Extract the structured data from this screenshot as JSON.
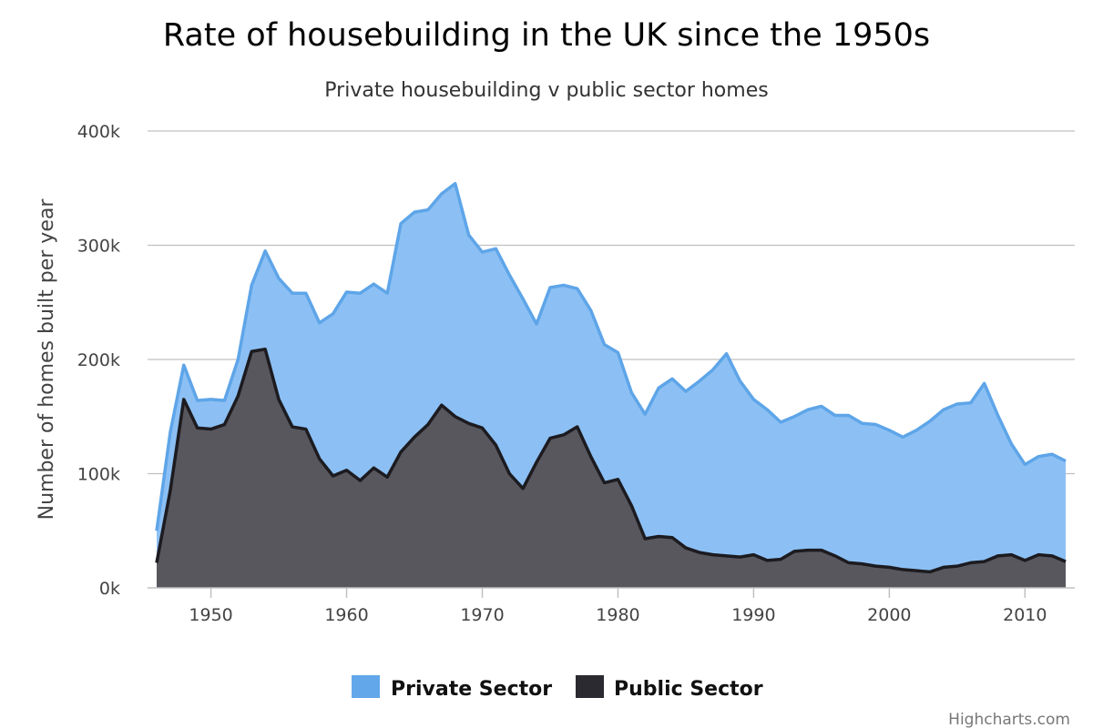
{
  "chart_data": {
    "type": "area",
    "title": "Rate of housebuilding in the UK since the 1950s",
    "subtitle": "Private housebuilding v public sector homes",
    "ylabel": "Number of homes built per year",
    "xlabel": "",
    "xlim": [
      1946,
      2013
    ],
    "ylim": [
      0,
      400000
    ],
    "x_ticks": [
      1950,
      1960,
      1970,
      1980,
      1990,
      2000,
      2010
    ],
    "y_ticks": [
      {
        "value": 0,
        "label": "0k"
      },
      {
        "value": 100000,
        "label": "100k"
      },
      {
        "value": 200000,
        "label": "200k"
      },
      {
        "value": 300000,
        "label": "300k"
      },
      {
        "value": 400000,
        "label": "400k"
      }
    ],
    "stacked": true,
    "grid": true,
    "legend_position": "bottom",
    "x": [
      1946,
      1947,
      1948,
      1949,
      1950,
      1951,
      1952,
      1953,
      1954,
      1955,
      1956,
      1957,
      1958,
      1959,
      1960,
      1961,
      1962,
      1963,
      1964,
      1965,
      1966,
      1967,
      1968,
      1969,
      1970,
      1971,
      1972,
      1973,
      1974,
      1975,
      1976,
      1977,
      1978,
      1979,
      1980,
      1981,
      1982,
      1983,
      1984,
      1985,
      1986,
      1987,
      1988,
      1989,
      1990,
      1991,
      1992,
      1993,
      1994,
      1995,
      1996,
      1997,
      1998,
      1999,
      2000,
      2001,
      2002,
      2003,
      2004,
      2005,
      2006,
      2007,
      2008,
      2009,
      2010,
      2011,
      2012,
      2013
    ],
    "series": [
      {
        "name": "Public Sector",
        "color": "#2b2a30",
        "values": [
          22000,
          85000,
          165000,
          140000,
          139000,
          143000,
          168000,
          207000,
          209000,
          165000,
          141000,
          139000,
          113000,
          98000,
          103000,
          94000,
          105000,
          97000,
          119000,
          132000,
          143000,
          160000,
          150000,
          144000,
          140000,
          125000,
          100000,
          87000,
          110000,
          131000,
          134000,
          141000,
          115000,
          92000,
          95000,
          72000,
          43000,
          45000,
          44000,
          35000,
          31000,
          29000,
          28000,
          27000,
          29000,
          24000,
          25000,
          32000,
          33000,
          33000,
          28000,
          22000,
          21000,
          19000,
          18000,
          16000,
          15000,
          14000,
          18000,
          19000,
          22000,
          23000,
          28000,
          29000,
          24000,
          29000,
          28000,
          23000
        ]
      },
      {
        "name": "Private Sector",
        "color": "#7cb5ec",
        "values": [
          28000,
          51000,
          30000,
          24000,
          26000,
          21000,
          32000,
          58000,
          86000,
          106000,
          117000,
          119000,
          119000,
          142000,
          156000,
          164000,
          161000,
          161000,
          200000,
          197000,
          188000,
          185000,
          204000,
          165000,
          154000,
          172000,
          174000,
          166000,
          121000,
          132000,
          131000,
          121000,
          128000,
          121000,
          111000,
          99000,
          109000,
          130000,
          139000,
          137000,
          150000,
          162000,
          177000,
          154000,
          136000,
          132000,
          120000,
          118000,
          123000,
          126000,
          123000,
          129000,
          123000,
          124000,
          120000,
          116000,
          123000,
          132000,
          138000,
          142000,
          140000,
          156000,
          123000,
          97000,
          84000,
          86000,
          89000,
          88000
        ]
      }
    ]
  },
  "credit": "Highcharts.com"
}
